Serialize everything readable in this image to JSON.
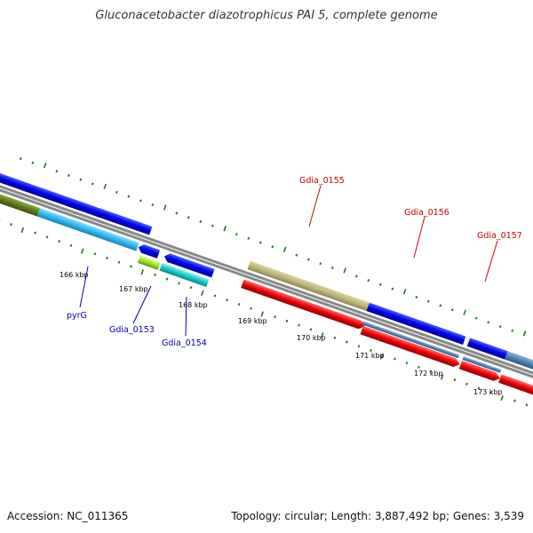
{
  "title": "Gluconacetobacter diazotrophicus PAI 5, complete genome",
  "footer": {
    "accession": "Accession: NC_011365",
    "summary": "Topology: circular; Length: 3,887,492 bp; Genes: 3,539"
  },
  "ruler_labels": [
    "166 kbp",
    "167 kbp",
    "168 kbp",
    "169 kbp",
    "170 kbp",
    "171 kbp",
    "172 kbp",
    "173 kbp"
  ],
  "gene_labels": {
    "pyrG": "pyrG",
    "gdia_0153": "Gdia_0153",
    "gdia_0154": "Gdia_0154",
    "gdia_0155": "Gdia_0155",
    "gdia_0156": "Gdia_0156",
    "gdia_0157": "Gdia_0157"
  },
  "colors": {
    "label_blue": "#0000aa",
    "label_red": "#cc0000",
    "tick_green": "#1a7a1a",
    "backbone": "#808080"
  }
}
